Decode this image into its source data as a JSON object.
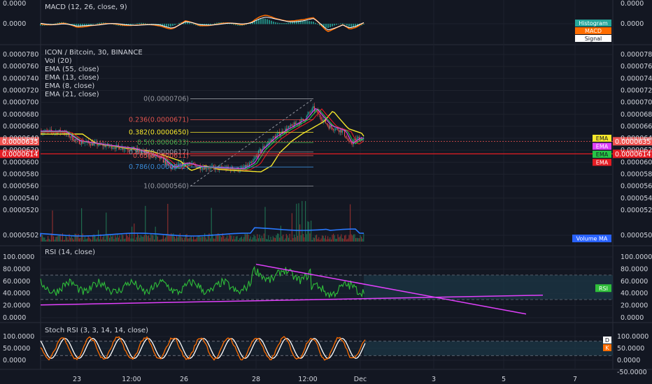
{
  "indicators": {
    "macd_title": "MACD (12, 26, close, 9)",
    "macd_scale_left": [
      "0.0000",
      "0.0000"
    ],
    "macd_scale_right": [
      "0.0000",
      "0.0000"
    ],
    "macd_legend": [
      {
        "label": "Histogram",
        "color": "#26a69a",
        "text": "#ffffff"
      },
      {
        "label": "MACD",
        "color": "#ff6d00",
        "text": "#ffffff"
      },
      {
        "label": "Signal",
        "color": "#ffffff",
        "text": "#131722"
      }
    ],
    "main_title": "ICON / Bitcoin, 30, BINANCE",
    "main_lines": [
      "Vol (20)",
      "EMA (55, close)",
      "EMA (13, close)",
      "EMA (8, close)",
      "EMA (21, close)"
    ],
    "price_ticks": [
      "0.0000780",
      "0.0000760",
      "0.0000740",
      "0.0000720",
      "0.0000700",
      "0.0000680",
      "0.0000660",
      "0.0000640",
      "0.0000620",
      "0.0000600",
      "0.0000580",
      "0.0000560",
      "0.0000540",
      "0.0000520",
      "0.0000502"
    ],
    "price_tag_1": "0.0000635",
    "price_tag_2": "0.0000614",
    "ema_tags": [
      {
        "label": "EMA",
        "color": "#f5e72b",
        "text": "#131722"
      },
      {
        "label": "EMA",
        "color": "#e040fb",
        "text": "#ffffff"
      },
      {
        "label": "EMA",
        "color": "#26c646",
        "text": "#131722"
      },
      {
        "label": "EMA",
        "color": "#e51c23",
        "text": "#ffffff"
      }
    ],
    "volume_ma_label": "Volume MA",
    "fib_levels": [
      {
        "label": "0(0.0000706)",
        "value": 706,
        "color": "#9598a1"
      },
      {
        "label": "0.236(0.0000671)",
        "value": 671,
        "color": "#e0534d"
      },
      {
        "label": "0.382(0.0000650)",
        "value": 650,
        "color": "#f5e72b"
      },
      {
        "label": "0.5(0.0000633)",
        "value": 633,
        "color": "#4caf50"
      },
      {
        "label": "0.618(0.0000617)",
        "value": 617,
        "color": "#9598a1"
      },
      {
        "label": "0.65(0.0000611)",
        "value": 611,
        "color": "#e0534d"
      },
      {
        "label": "0.786(0.0000592)",
        "value": 592,
        "color": "#3a8ad6"
      },
      {
        "label": "1(0.0000560)",
        "value": 560,
        "color": "#9598a1"
      }
    ],
    "rsi_title": "RSI (14, close)",
    "rsi_ticks": [
      "100.0000",
      "80.0000",
      "60.0000",
      "40.0000",
      "20.0000",
      "0.0000"
    ],
    "rsi_tag": "RSI",
    "stoch_title": "Stoch RSI (3, 3, 14, 14, close)",
    "stoch_ticks": [
      "100.0000",
      "50.0000",
      "0.0000"
    ],
    "stoch_right_ticks": [
      "100.0000",
      "50.0000",
      "0.0000",
      "-50.0000"
    ],
    "stoch_tags": [
      {
        "label": "D",
        "color": "#ffffff",
        "text": "#131722"
      },
      {
        "label": "K",
        "color": "#ff6d00",
        "text": "#ffffff"
      }
    ],
    "time_labels": [
      "23",
      "12:00",
      "26",
      "28",
      "12:00",
      "Dec",
      "3",
      "5",
      "7"
    ]
  },
  "chart_data": {
    "type": "line",
    "title": "ICON / Bitcoin, 30, BINANCE",
    "price_range": [
      5.02e-05,
      7.9e-05
    ],
    "last_price": 6.35e-05,
    "ema_55_last": 6.14e-05,
    "fib_high": 7.06e-05,
    "fib_low": 5.6e-05,
    "rsi_range": [
      0,
      100
    ],
    "rsi_band": [
      30,
      70
    ],
    "stoch_band": [
      20,
      80
    ]
  }
}
